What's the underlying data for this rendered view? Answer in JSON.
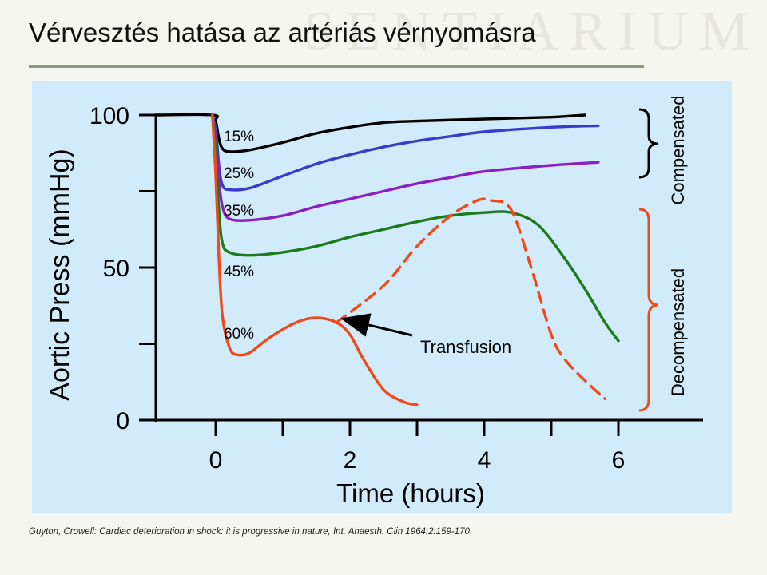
{
  "slide": {
    "title": "Vérvesztés hatása az artériás vérnyomásra",
    "watermark": "SENTIARIUM",
    "citation": "Guyton, Crowell: Cardiac deterioration in shock: it is progressive in nature, Int. Anaesth. Clin 1964:2:159-170"
  },
  "chart_data": {
    "type": "line",
    "ylabel": "Aortic Press (mmHg)",
    "xlabel": "Time (hours)",
    "xlim": [
      -1.3,
      6.2
    ],
    "ylim": [
      0,
      100
    ],
    "x_ticks": [
      0,
      2,
      4,
      6
    ],
    "x_tick_labels": [
      "0",
      "2",
      "4",
      "6"
    ],
    "y_ticks": [
      0,
      25,
      50,
      75,
      100
    ],
    "y_tick_labels": [
      "0",
      "",
      "50",
      "",
      "100"
    ],
    "series": [
      {
        "name": "15%",
        "color": "#000000",
        "dashed": false,
        "points": [
          [
            -0.9,
            100
          ],
          [
            -0.05,
            100
          ],
          [
            0,
            98
          ],
          [
            0.05,
            92
          ],
          [
            0.1,
            89
          ],
          [
            0.2,
            88
          ],
          [
            0.5,
            88.5
          ],
          [
            1,
            91
          ],
          [
            1.5,
            94
          ],
          [
            2,
            96
          ],
          [
            2.5,
            97.5
          ],
          [
            3,
            98
          ],
          [
            4,
            98.7
          ],
          [
            5,
            99.3
          ],
          [
            5.5,
            100
          ]
        ]
      },
      {
        "name": "25%",
        "color": "#3a3acf",
        "dashed": false,
        "points": [
          [
            -0.05,
            100
          ],
          [
            0,
            95
          ],
          [
            0.05,
            83
          ],
          [
            0.1,
            77
          ],
          [
            0.2,
            75.5
          ],
          [
            0.5,
            76
          ],
          [
            1,
            80
          ],
          [
            1.5,
            84
          ],
          [
            2,
            87
          ],
          [
            2.5,
            89.5
          ],
          [
            3,
            91.5
          ],
          [
            3.5,
            93
          ],
          [
            4,
            94.5
          ],
          [
            5,
            96
          ],
          [
            5.7,
            96.5
          ]
        ]
      },
      {
        "name": "35%",
        "color": "#8a1fc4",
        "dashed": false,
        "points": [
          [
            -0.05,
            100
          ],
          [
            0,
            92
          ],
          [
            0.05,
            78
          ],
          [
            0.1,
            70
          ],
          [
            0.2,
            66
          ],
          [
            0.5,
            65.5
          ],
          [
            1,
            67
          ],
          [
            1.5,
            70
          ],
          [
            2,
            72.5
          ],
          [
            2.5,
            75
          ],
          [
            3,
            77.5
          ],
          [
            3.5,
            79.5
          ],
          [
            4,
            81.5
          ],
          [
            5,
            83.5
          ],
          [
            5.7,
            84.5
          ]
        ]
      },
      {
        "name": "45%",
        "color": "#1d7a1d",
        "dashed": false,
        "points": [
          [
            -0.05,
            100
          ],
          [
            0,
            88
          ],
          [
            0.05,
            68
          ],
          [
            0.1,
            58
          ],
          [
            0.2,
            55
          ],
          [
            0.5,
            54
          ],
          [
            1,
            55
          ],
          [
            1.5,
            57
          ],
          [
            2,
            60
          ],
          [
            2.5,
            62.5
          ],
          [
            3,
            65
          ],
          [
            3.5,
            67
          ],
          [
            4,
            68
          ],
          [
            4.4,
            68
          ],
          [
            4.8,
            64
          ],
          [
            5.2,
            53
          ],
          [
            5.5,
            43
          ],
          [
            5.8,
            32
          ],
          [
            6,
            26
          ]
        ]
      },
      {
        "name": "60%",
        "color": "#ee4a1c",
        "dashed": false,
        "points": [
          [
            -0.05,
            100
          ],
          [
            0,
            80
          ],
          [
            0.05,
            52
          ],
          [
            0.1,
            34
          ],
          [
            0.2,
            24
          ],
          [
            0.3,
            21.5
          ],
          [
            0.5,
            22
          ],
          [
            0.8,
            27
          ],
          [
            1.2,
            32
          ],
          [
            1.5,
            33.5
          ],
          [
            1.8,
            32
          ],
          [
            2,
            28
          ],
          [
            2.2,
            20
          ],
          [
            2.5,
            10
          ],
          [
            2.8,
            6
          ],
          [
            3,
            5
          ]
        ]
      },
      {
        "name": "",
        "color": "#ee4a1c",
        "dashed": true,
        "points": [
          [
            1.8,
            32
          ],
          [
            2.5,
            44
          ],
          [
            3,
            57
          ],
          [
            3.5,
            67
          ],
          [
            3.9,
            72
          ],
          [
            4.1,
            72
          ],
          [
            4.4,
            69
          ],
          [
            4.7,
            50
          ],
          [
            5,
            28
          ],
          [
            5.2,
            20
          ],
          [
            5.5,
            13
          ],
          [
            5.8,
            7
          ]
        ]
      }
    ],
    "series_labels": [
      "15%",
      "25%",
      "35%",
      "45%",
      "60%"
    ],
    "annotation": {
      "text": "Transfusion",
      "x": 1.8,
      "y": 32
    },
    "groups": [
      {
        "label": "Compensated",
        "members": [
          "15%",
          "25%",
          "35%"
        ]
      },
      {
        "label": "Decompensated",
        "members": [
          "45%",
          "60%"
        ]
      }
    ]
  }
}
